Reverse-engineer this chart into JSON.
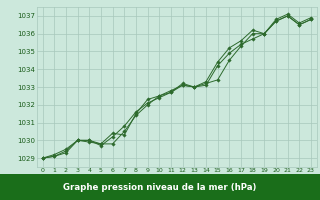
{
  "x": [
    0,
    1,
    2,
    3,
    4,
    5,
    6,
    7,
    8,
    9,
    10,
    11,
    12,
    13,
    14,
    15,
    16,
    17,
    18,
    19,
    20,
    21,
    22,
    23
  ],
  "line1": [
    1029.0,
    1029.1,
    1029.3,
    1030.0,
    1029.9,
    1029.8,
    1030.4,
    1030.3,
    1031.5,
    1032.3,
    1032.5,
    1032.8,
    1033.1,
    1033.0,
    1033.3,
    1034.4,
    1035.2,
    1035.6,
    1036.2,
    1036.0,
    1036.7,
    1037.0,
    1036.5,
    1036.8
  ],
  "line2": [
    1029.0,
    1029.2,
    1029.5,
    1030.0,
    1030.0,
    1029.7,
    1030.2,
    1030.8,
    1031.6,
    1032.1,
    1032.4,
    1032.7,
    1033.2,
    1033.0,
    1033.1,
    1034.2,
    1034.9,
    1035.4,
    1035.7,
    1036.0,
    1036.8,
    1037.1,
    1036.6,
    1036.9
  ],
  "line3": [
    1029.0,
    1029.1,
    1029.4,
    1030.0,
    1030.0,
    1029.8,
    1029.8,
    1030.5,
    1031.4,
    1032.0,
    1032.5,
    1032.7,
    1033.1,
    1033.0,
    1033.2,
    1033.4,
    1034.5,
    1035.3,
    1036.0,
    1036.0,
    1036.7,
    1037.0,
    1036.5,
    1036.8
  ],
  "line_color": "#2d6a2d",
  "bg_color": "#cce8dc",
  "grid_color": "#a8c8bc",
  "xlabel": "Graphe pression niveau de la mer (hPa)",
  "ylim": [
    1028.5,
    1037.5
  ],
  "xlim": [
    -0.5,
    23.5
  ],
  "yticks": [
    1029,
    1030,
    1031,
    1032,
    1033,
    1034,
    1035,
    1036,
    1037
  ],
  "xticks": [
    0,
    1,
    2,
    3,
    4,
    5,
    6,
    7,
    8,
    9,
    10,
    11,
    12,
    13,
    14,
    15,
    16,
    17,
    18,
    19,
    20,
    21,
    22,
    23
  ],
  "tick_color": "#1a5c1a",
  "xlabel_bar_color": "#1a6e1a",
  "xlabel_text_color": "#ffffff"
}
